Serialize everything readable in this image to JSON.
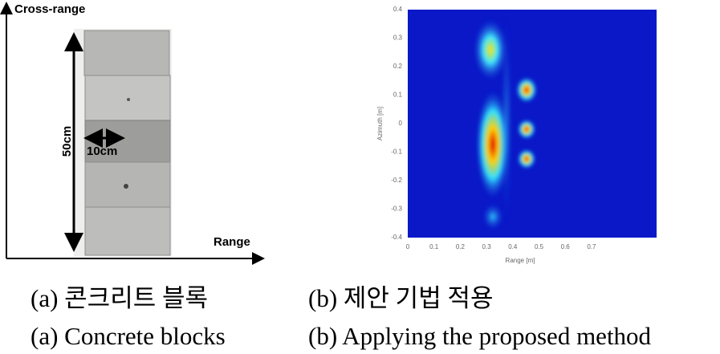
{
  "panel_a": {
    "axis_y_label": "Cross-range",
    "axis_x_label": "Range",
    "height_label": "50cm",
    "width_label": "10cm"
  },
  "panel_b": {
    "y_axis_label": "Azimuth [m]",
    "x_axis_label": "Range [m]",
    "y_tick_labels": [
      "0.4",
      "0.3",
      "0.2",
      "0.1",
      "0",
      "-0.1",
      "-0.2",
      "-0.3",
      "-0.4"
    ],
    "x_tick_labels": [
      "0",
      "0.1",
      "0.2",
      "0.3",
      "0.4",
      "0.5",
      "0.6",
      "0.7"
    ]
  },
  "captions": {
    "a_korean": "(a) 콘크리트 블록",
    "b_korean": "(b) 제안 기법 적용",
    "a_english": "(a) Concrete blocks",
    "b_english": "(b) Applying the proposed method"
  }
}
